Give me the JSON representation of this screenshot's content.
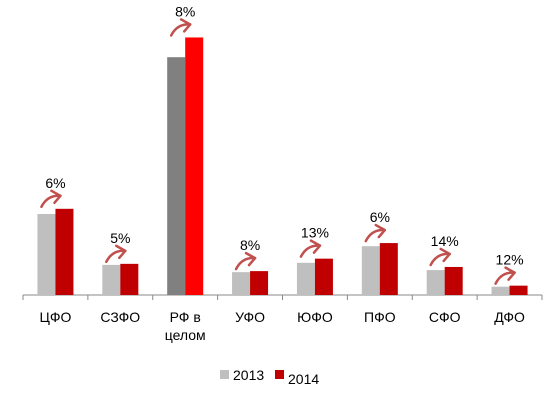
{
  "chart_data": {
    "type": "bar",
    "categories": [
      "ЦФО",
      "СЗФО",
      "РФ в целом",
      "УФО",
      "ЮФО",
      "ПФО",
      "СФО",
      "ДФО"
    ],
    "category_lines": [
      [
        "ЦФО"
      ],
      [
        "СЗФО"
      ],
      [
        "РФ в",
        "целом"
      ],
      [
        "УФО"
      ],
      [
        "ЮФО"
      ],
      [
        "ПФО"
      ],
      [
        "СФО"
      ],
      [
        "ДФО"
      ]
    ],
    "series": [
      {
        "name": "2013",
        "values": [
          78,
          29,
          229,
          22,
          31,
          47,
          24,
          8
        ]
      },
      {
        "name": "2014",
        "values": [
          83,
          30,
          248,
          23,
          35,
          50,
          27,
          9
        ]
      }
    ],
    "growth_labels": [
      "6%",
      "5%",
      "8%",
      "8%",
      "13%",
      "6%",
      "14%",
      "12%"
    ],
    "ylim": [
      0,
      260
    ],
    "grid": false,
    "legend": "bottom",
    "title": "",
    "xlabel": "",
    "ylabel": ""
  },
  "colors": {
    "series_2013": "#BFBFBF",
    "series_2014": "#C00000",
    "highlight_2013": "#808080",
    "highlight_2014": "#FF0000",
    "arrow": "#C0504D",
    "axis": "#888888"
  },
  "highlight_index": 2,
  "icons": {
    "growth_marker": "up-right-arrow-icon"
  }
}
